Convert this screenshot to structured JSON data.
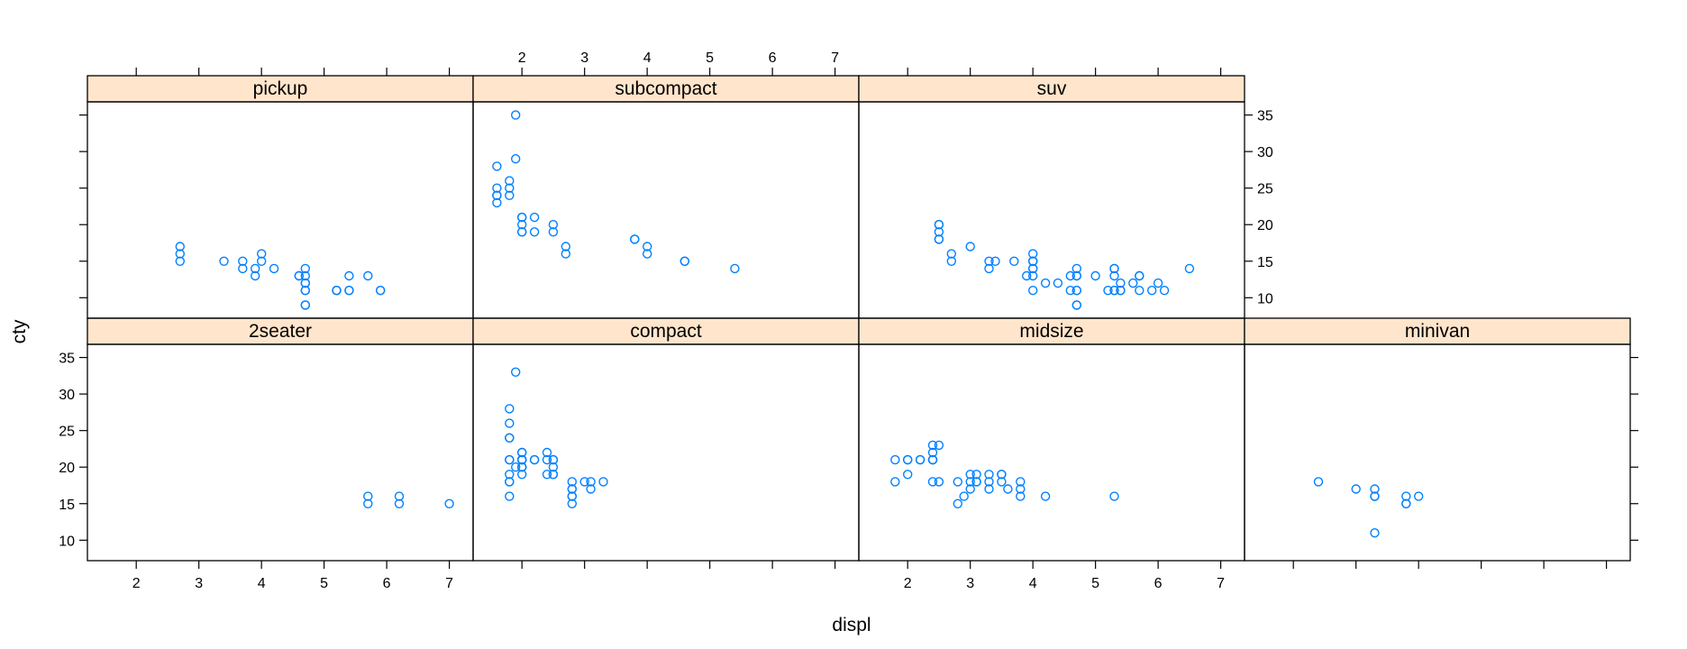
{
  "chart_data": {
    "type": "scatter",
    "layout": "lattice 4 columns x 2 rows, panels filled bottom-left to right, then upper row",
    "xlabel": "displ",
    "ylabel": "cty",
    "xticks": [
      2,
      3,
      4,
      5,
      6,
      7
    ],
    "yticks": [
      10,
      15,
      20,
      25,
      30,
      35
    ],
    "xlim": [
      1.22,
      7.38
    ],
    "ylim": [
      7.2,
      36.8
    ],
    "colors": {
      "point": "#0080ff",
      "strip": "#ffe5cc",
      "frame": "#000000"
    },
    "panels": [
      {
        "name": "2seater",
        "points": [
          [
            5.7,
            16
          ],
          [
            5.7,
            15
          ],
          [
            6.2,
            16
          ],
          [
            6.2,
            15
          ],
          [
            7.0,
            15
          ]
        ]
      },
      {
        "name": "compact",
        "points": [
          [
            1.8,
            18
          ],
          [
            1.8,
            21
          ],
          [
            2.0,
            20
          ],
          [
            2.0,
            21
          ],
          [
            2.8,
            16
          ],
          [
            2.8,
            18
          ],
          [
            3.1,
            18
          ],
          [
            1.8,
            18
          ],
          [
            1.8,
            16
          ],
          [
            2.0,
            20
          ],
          [
            2.0,
            19
          ],
          [
            2.8,
            15
          ],
          [
            3.1,
            17
          ],
          [
            2.2,
            21
          ],
          [
            2.2,
            21
          ],
          [
            2.4,
            21
          ],
          [
            2.4,
            22
          ],
          [
            3.0,
            18
          ],
          [
            1.8,
            24
          ],
          [
            1.8,
            24
          ],
          [
            1.8,
            26
          ],
          [
            1.8,
            28
          ],
          [
            1.9,
            33
          ],
          [
            2.0,
            21
          ],
          [
            2.0,
            22
          ],
          [
            2.5,
            21
          ],
          [
            2.5,
            19
          ],
          [
            2.8,
            17
          ],
          [
            1.8,
            21
          ],
          [
            1.8,
            19
          ],
          [
            2.0,
            22
          ],
          [
            2.0,
            21
          ],
          [
            2.8,
            17
          ],
          [
            2.4,
            19
          ],
          [
            2.5,
            20
          ],
          [
            2.5,
            19
          ],
          [
            3.3,
            18
          ],
          [
            1.9,
            20
          ],
          [
            2.0,
            20
          ],
          [
            2.5,
            21
          ],
          [
            2.8,
            16
          ],
          [
            2.0,
            21
          ],
          [
            2.0,
            21
          ]
        ]
      },
      {
        "name": "midsize",
        "points": [
          [
            2.4,
            21
          ],
          [
            2.4,
            21
          ],
          [
            3.1,
            18
          ],
          [
            3.5,
            19
          ],
          [
            3.6,
            17
          ],
          [
            2.4,
            22
          ],
          [
            3.0,
            19
          ],
          [
            3.3,
            18
          ],
          [
            3.3,
            19
          ],
          [
            3.3,
            17
          ],
          [
            3.8,
            17
          ],
          [
            3.8,
            18
          ],
          [
            3.8,
            16
          ],
          [
            4.2,
            16
          ],
          [
            5.3,
            16
          ],
          [
            2.2,
            21
          ],
          [
            2.2,
            21
          ],
          [
            2.4,
            21
          ],
          [
            2.4,
            23
          ],
          [
            3.0,
            18
          ],
          [
            3.0,
            17
          ],
          [
            3.5,
            19
          ],
          [
            1.8,
            18
          ],
          [
            1.8,
            21
          ],
          [
            2.0,
            19
          ],
          [
            2.0,
            21
          ],
          [
            2.4,
            18
          ],
          [
            2.5,
            18
          ],
          [
            2.5,
            23
          ],
          [
            2.8,
            15
          ],
          [
            2.8,
            18
          ],
          [
            2.9,
            16
          ],
          [
            3.1,
            19
          ],
          [
            3.1,
            18
          ],
          [
            3.5,
            18
          ],
          [
            2.0,
            21
          ]
        ]
      },
      {
        "name": "minivan",
        "points": [
          [
            2.4,
            18
          ],
          [
            3.0,
            17
          ],
          [
            3.3,
            16
          ],
          [
            3.3,
            16
          ],
          [
            3.3,
            17
          ],
          [
            3.8,
            15
          ],
          [
            3.8,
            15
          ],
          [
            3.8,
            16
          ],
          [
            4.0,
            16
          ],
          [
            3.3,
            11
          ]
        ]
      },
      {
        "name": "pickup",
        "points": [
          [
            2.7,
            15
          ],
          [
            2.7,
            16
          ],
          [
            2.7,
            17
          ],
          [
            3.4,
            15
          ],
          [
            3.7,
            15
          ],
          [
            3.7,
            14
          ],
          [
            3.9,
            14
          ],
          [
            3.9,
            13
          ],
          [
            4.0,
            15
          ],
          [
            4.0,
            16
          ],
          [
            4.2,
            14
          ],
          [
            4.6,
            13
          ],
          [
            4.7,
            14
          ],
          [
            4.7,
            12
          ],
          [
            4.7,
            9
          ],
          [
            4.7,
            13
          ],
          [
            4.7,
            11
          ],
          [
            5.2,
            11
          ],
          [
            5.2,
            11
          ],
          [
            5.4,
            13
          ],
          [
            5.4,
            11
          ],
          [
            5.7,
            13
          ],
          [
            5.9,
            11
          ],
          [
            4.6,
            13
          ],
          [
            4.7,
            12
          ],
          [
            4.7,
            9
          ],
          [
            4.7,
            11
          ],
          [
            5.4,
            11
          ],
          [
            5.2,
            11
          ],
          [
            5.9,
            11
          ]
        ]
      },
      {
        "name": "subcompact",
        "points": [
          [
            1.6,
            28
          ],
          [
            1.6,
            24
          ],
          [
            1.6,
            25
          ],
          [
            1.6,
            23
          ],
          [
            1.6,
            24
          ],
          [
            1.8,
            26
          ],
          [
            1.8,
            25
          ],
          [
            1.8,
            24
          ],
          [
            1.9,
            29
          ],
          [
            1.9,
            35
          ],
          [
            2.0,
            21
          ],
          [
            2.0,
            19
          ],
          [
            2.0,
            20
          ],
          [
            2.0,
            19
          ],
          [
            2.0,
            21
          ],
          [
            2.2,
            21
          ],
          [
            2.2,
            19
          ],
          [
            2.5,
            20
          ],
          [
            2.5,
            19
          ],
          [
            2.7,
            17
          ],
          [
            2.7,
            16
          ],
          [
            3.8,
            18
          ],
          [
            3.8,
            18
          ],
          [
            4.0,
            17
          ],
          [
            4.0,
            16
          ],
          [
            4.6,
            15
          ],
          [
            4.6,
            15
          ],
          [
            5.4,
            14
          ]
        ]
      },
      {
        "name": "suv",
        "points": [
          [
            2.5,
            18
          ],
          [
            2.5,
            18
          ],
          [
            2.5,
            20
          ],
          [
            2.5,
            19
          ],
          [
            2.5,
            20
          ],
          [
            2.7,
            15
          ],
          [
            2.7,
            16
          ],
          [
            3.0,
            17
          ],
          [
            3.3,
            14
          ],
          [
            3.3,
            15
          ],
          [
            3.4,
            15
          ],
          [
            3.7,
            15
          ],
          [
            3.9,
            13
          ],
          [
            4.0,
            14
          ],
          [
            4.0,
            15
          ],
          [
            4.0,
            16
          ],
          [
            4.0,
            15
          ],
          [
            4.0,
            13
          ],
          [
            4.0,
            14
          ],
          [
            4.0,
            11
          ],
          [
            4.2,
            12
          ],
          [
            4.4,
            12
          ],
          [
            4.6,
            11
          ],
          [
            4.6,
            13
          ],
          [
            4.7,
            14
          ],
          [
            4.7,
            13
          ],
          [
            4.7,
            11
          ],
          [
            4.7,
            9
          ],
          [
            4.7,
            13
          ],
          [
            4.7,
            11
          ],
          [
            5.0,
            13
          ],
          [
            5.2,
            11
          ],
          [
            5.3,
            14
          ],
          [
            5.3,
            13
          ],
          [
            5.3,
            11
          ],
          [
            5.3,
            11
          ],
          [
            5.3,
            14
          ],
          [
            5.4,
            11
          ],
          [
            5.4,
            12
          ],
          [
            5.4,
            11
          ],
          [
            5.6,
            12
          ],
          [
            5.7,
            13
          ],
          [
            5.7,
            11
          ],
          [
            5.9,
            11
          ],
          [
            6.0,
            12
          ],
          [
            6.1,
            11
          ],
          [
            6.5,
            14
          ],
          [
            4.0,
            15
          ],
          [
            4.7,
            9
          ],
          [
            5.7,
            13
          ]
        ]
      }
    ]
  }
}
